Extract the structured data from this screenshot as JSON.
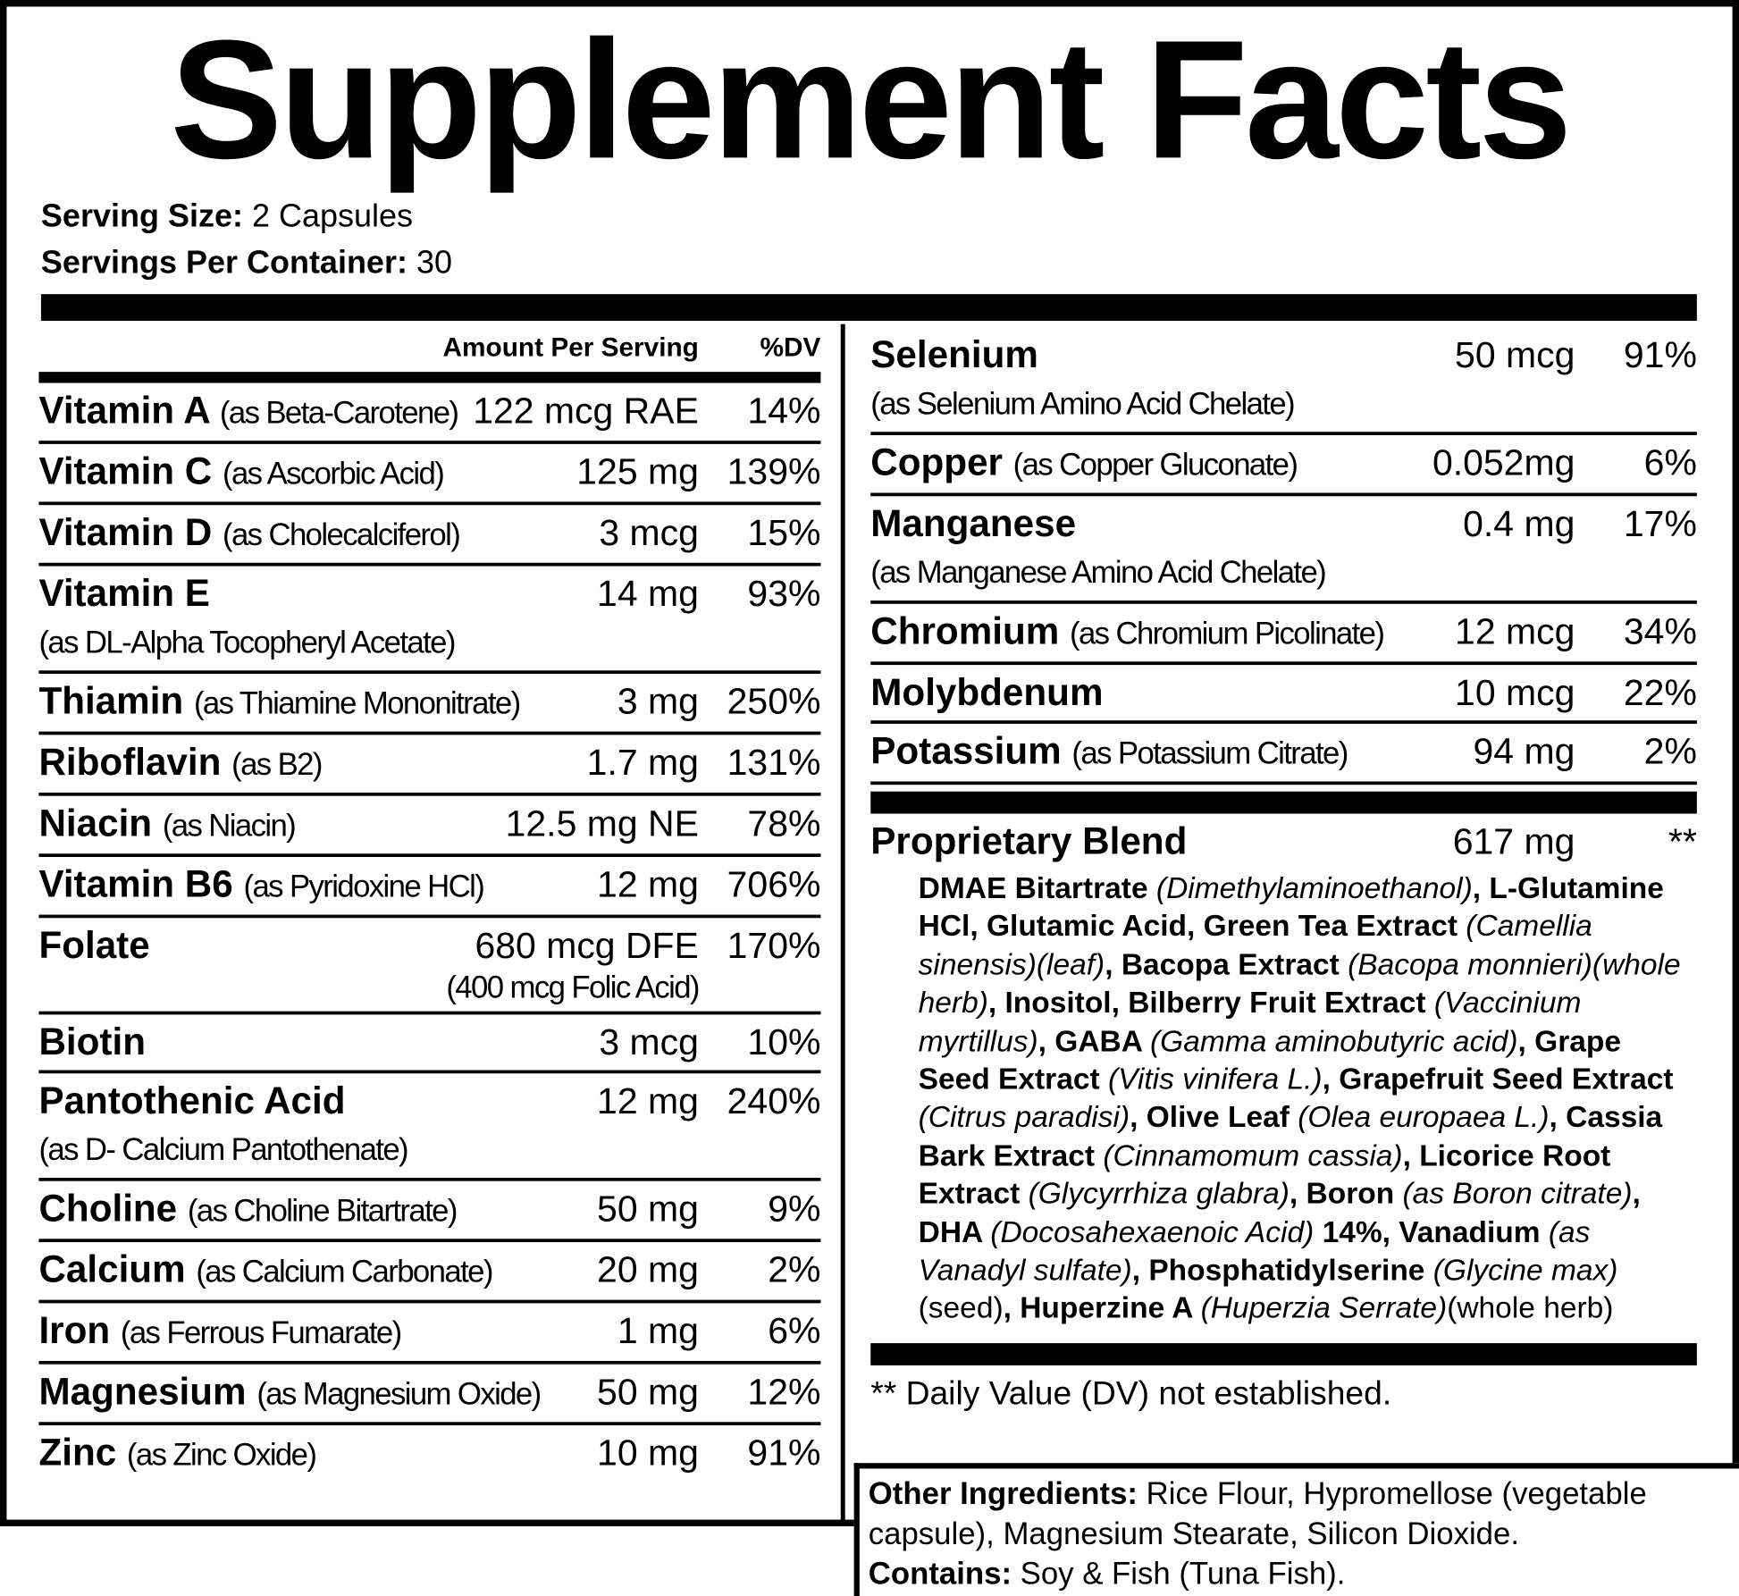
{
  "title": "Supplement Facts",
  "serving": {
    "size_label": "Serving Size:",
    "size": "2 Capsules",
    "per_container_label": "Servings Per Container:",
    "per_container": "30"
  },
  "header": {
    "amount": "Amount Per Serving",
    "dv": "%DV"
  },
  "left_rows": [
    {
      "name": "Vitamin A",
      "qualifier": "(as Beta-Carotene)",
      "amount": "122 mcg RAE",
      "dv": "14%"
    },
    {
      "name": "Vitamin C",
      "qualifier": "(as Ascorbic Acid)",
      "amount": "125 mg",
      "dv": "139%"
    },
    {
      "name": "Vitamin D",
      "qualifier": "(as Cholecalciferol)",
      "amount": "3 mcg",
      "dv": "15%"
    },
    {
      "name": "Vitamin E",
      "qualifier": "(as DL-Alpha Tocopheryl Acetate)",
      "amount": "14 mg",
      "dv": "93%"
    },
    {
      "name": "Thiamin",
      "qualifier": "(as Thiamine Mononitrate)",
      "amount": "3 mg",
      "dv": "250%"
    },
    {
      "name": "Riboflavin",
      "qualifier": "(as B2)",
      "amount": "1.7 mg",
      "dv": "131%"
    },
    {
      "name": "Niacin",
      "qualifier": "(as Niacin)",
      "amount": "12.5 mg NE",
      "dv": "78%"
    },
    {
      "name": "Vitamin B6",
      "qualifier": "(as Pyridoxine HCl)",
      "amount": "12 mg",
      "dv": "706%"
    },
    {
      "name": "Folate",
      "amount": "680 mcg DFE",
      "amount_note": "(400 mcg Folic Acid)",
      "dv": "170%"
    },
    {
      "name": "Biotin",
      "amount": "3 mcg",
      "dv": "10%"
    },
    {
      "name": "Pantothenic Acid",
      "qualifier": "(as D- Calcium Pantothenate)",
      "amount": "12 mg",
      "dv": "240%"
    },
    {
      "name": "Choline",
      "qualifier": "(as Choline Bitartrate)",
      "amount": "50 mg",
      "dv": "9%"
    },
    {
      "name": "Calcium",
      "qualifier": "(as Calcium Carbonate)",
      "amount": "20 mg",
      "dv": "2%"
    },
    {
      "name": "Iron",
      "qualifier": "(as Ferrous Fumarate)",
      "amount": "1 mg",
      "dv": "6%"
    },
    {
      "name": "Magnesium",
      "qualifier": "(as Magnesium Oxide)",
      "amount": "50 mg",
      "dv": "12%"
    },
    {
      "name": "Zinc",
      "qualifier": "(as Zinc Oxide)",
      "amount": "10 mg",
      "dv": "91%"
    }
  ],
  "right_rows": [
    {
      "name": "Selenium",
      "qualifier": "(as Selenium Amino Acid Chelate)",
      "amount": "50 mcg",
      "dv": "91%"
    },
    {
      "name": "Copper",
      "qualifier": "(as Copper Gluconate)",
      "amount": "0.052mg",
      "dv": "6%"
    },
    {
      "name": "Manganese",
      "qualifier": "(as Manganese Amino Acid Chelate)",
      "amount": "0.4 mg",
      "dv": "17%"
    },
    {
      "name": "Chromium",
      "qualifier": "(as Chromium Picolinate)",
      "amount": "12 mcg",
      "dv": "34%"
    },
    {
      "name": "Molybdenum",
      "amount": "10 mcg",
      "dv": "22%"
    },
    {
      "name": "Potassium",
      "qualifier": "(as Potassium Citrate)",
      "amount": "94 mg",
      "dv": "2%"
    }
  ],
  "blend": {
    "name": "Proprietary Blend",
    "amount": "617 mg",
    "dv": "**",
    "segments": [
      {
        "text": "DMAE Bitartrate ",
        "style": "bold"
      },
      {
        "text": "(Dimethylaminoethanol)",
        "style": "italic"
      },
      {
        "text": ", L-Glutamine HCl, Glutamic Acid, Green Tea Extract ",
        "style": "bold"
      },
      {
        "text": "(Camellia sinensis)(leaf)",
        "style": "italic"
      },
      {
        "text": ", Bacopa Extract ",
        "style": "bold"
      },
      {
        "text": "(Bacopa monnieri)(whole herb)",
        "style": "italic"
      },
      {
        "text": ", Inositol, Bilberry Fruit Extract ",
        "style": "bold"
      },
      {
        "text": "(Vaccinium myrtillus)",
        "style": "italic"
      },
      {
        "text": ", GABA ",
        "style": "bold"
      },
      {
        "text": "(Gamma aminobutyric acid)",
        "style": "italic"
      },
      {
        "text": ", Grape Seed Extract ",
        "style": "bold"
      },
      {
        "text": "(Vitis vinifera L.)",
        "style": "italic"
      },
      {
        "text": ", Grapefruit Seed Extract ",
        "style": "bold"
      },
      {
        "text": "(Citrus paradisi)",
        "style": "italic"
      },
      {
        "text": ", Olive Leaf ",
        "style": "bold"
      },
      {
        "text": "(Olea europaea L.)",
        "style": "italic"
      },
      {
        "text": ", Cassia Bark Extract ",
        "style": "bold"
      },
      {
        "text": "(Cinnamomum cassia)",
        "style": "italic"
      },
      {
        "text": ", Licorice Root Extract ",
        "style": "bold"
      },
      {
        "text": "(Glycyrrhiza glabra)",
        "style": "italic"
      },
      {
        "text": ", Boron ",
        "style": "bold"
      },
      {
        "text": "(as Boron citrate)",
        "style": "italic"
      },
      {
        "text": ", DHA ",
        "style": "bold"
      },
      {
        "text": "(Docosahexaenoic Acid)",
        "style": "italic"
      },
      {
        "text": " 14%, Vanadium ",
        "style": "bold"
      },
      {
        "text": "(as Vanadyl sulfate)",
        "style": "italic"
      },
      {
        "text": ", Phosphatidylserine ",
        "style": "bold"
      },
      {
        "text": "(Glycine max)",
        "style": "italic"
      },
      {
        "text": "(seed)",
        "style": "plain"
      },
      {
        "text": ", Huperzine A ",
        "style": "bold"
      },
      {
        "text": "(Huperzia Serrate)",
        "style": "italic"
      },
      {
        "text": "(whole herb)",
        "style": "plain"
      }
    ]
  },
  "footnote": "** Daily Value (DV) not established.",
  "other": {
    "label": "Other Ingredients:",
    "text": "Rice Flour, Hypromellose (vegetable capsule), Magnesium Stearate, Silicon Dioxide.",
    "contains_label": "Contains:",
    "contains": "Soy & Fish (Tuna Fish)."
  }
}
